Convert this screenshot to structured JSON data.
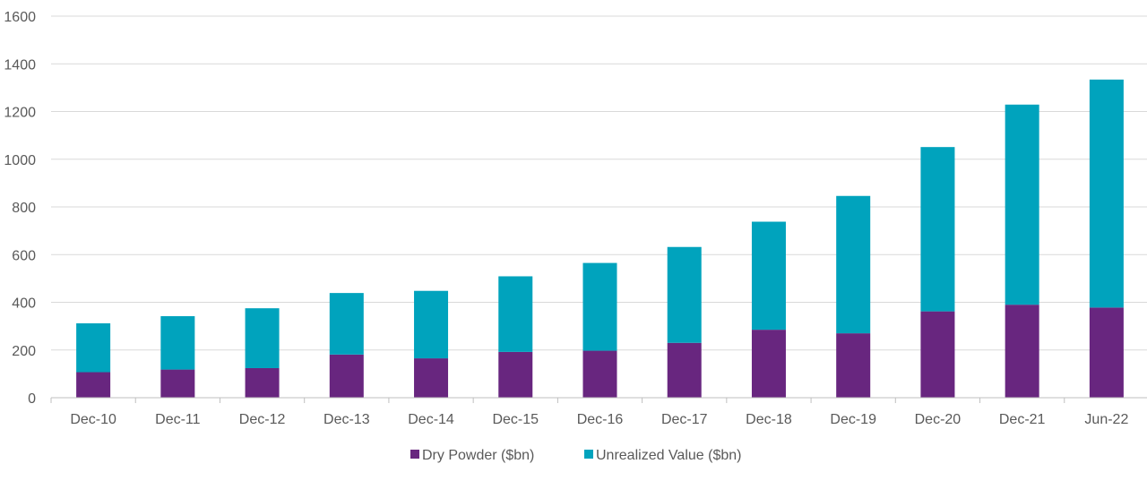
{
  "chart_data": {
    "type": "bar",
    "stacked": true,
    "categories": [
      "Dec-10",
      "Dec-11",
      "Dec-12",
      "Dec-13",
      "Dec-14",
      "Dec-15",
      "Dec-16",
      "Dec-17",
      "Dec-18",
      "Dec-19",
      "Dec-20",
      "Dec-21",
      "Jun-22"
    ],
    "series": [
      {
        "name": "Dry Powder ($bn)",
        "color": "#68267f",
        "values": [
          107,
          118,
          124,
          181,
          165,
          192,
          197,
          230,
          285,
          270,
          362,
          390,
          378
        ]
      },
      {
        "name": "Unrealized Value ($bn)",
        "color": "#00a3bd",
        "values": [
          205,
          224,
          251,
          258,
          283,
          317,
          368,
          402,
          453,
          576,
          689,
          839,
          956
        ]
      }
    ],
    "ylim": [
      0,
      1600
    ],
    "yticks": [
      0,
      200,
      400,
      600,
      800,
      1000,
      1200,
      1400,
      1600
    ],
    "grid": true,
    "legend_position": "bottom",
    "xlabel": "",
    "ylabel": "",
    "title": ""
  }
}
